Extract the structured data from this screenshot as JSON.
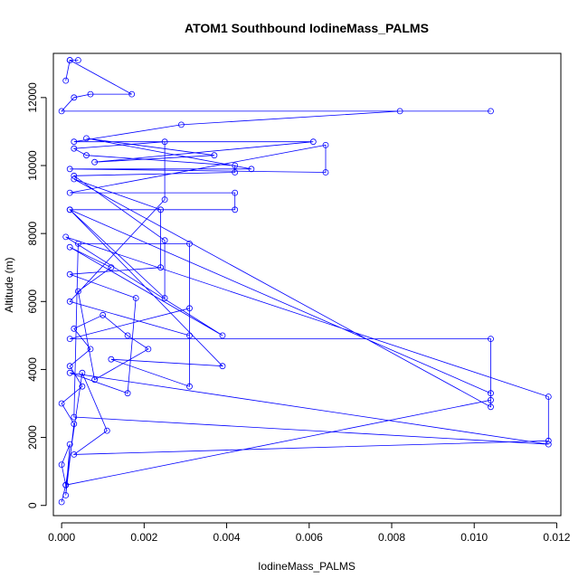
{
  "chart_data": {
    "type": "scatter",
    "title": "ATOM1 Southbound IodineMass_PALMS",
    "xlabel": "IodineMass_PALMS",
    "ylabel": "Altitude (m)",
    "xlim": [
      -0.0002,
      0.0121
    ],
    "ylim": [
      -300,
      13300
    ],
    "xticks": [
      0,
      0.002,
      0.004,
      0.006,
      0.008,
      0.01,
      0.012
    ],
    "xtick_labels": [
      "0.000",
      "0.002",
      "0.004",
      "0.006",
      "0.008",
      "0.010",
      "0.012"
    ],
    "yticks": [
      0,
      2000,
      4000,
      6000,
      8000,
      10000,
      12000
    ],
    "ytick_labels": [
      "0",
      "2000",
      "4000",
      "6000",
      "8000",
      "10000",
      "12000"
    ],
    "grid": false,
    "legend": "none",
    "plot_kind": "points connected by lines (type = b)",
    "color": "#0000ff",
    "series": [
      {
        "x": [
          0.0,
          0.0001,
          0.0,
          0.0002,
          0.0001,
          0.0003,
          0.0,
          0.0005,
          0.0002,
          0.0007,
          0.0003,
          0.001,
          0.0016,
          0.0021,
          0.0008,
          0.0004,
          0.0012,
          0.0002,
          0.0039,
          0.0001,
          0.0118,
          0.0118,
          0.0003,
          0.0011,
          0.0005,
          0.0001,
          0.0104,
          0.0104,
          0.0002,
          0.0031,
          0.0031,
          0.0012,
          0.0039,
          0.0002,
          0.0104,
          0.0104,
          0.0003,
          0.0024,
          0.0024,
          0.0002,
          0.0018,
          0.0016,
          0.0002,
          0.0118,
          0.0003,
          0.0004,
          0.0031,
          0.0031,
          0.0002,
          0.0025,
          0.0025,
          0.0003,
          0.0006,
          0.0042,
          0.0042,
          0.0003,
          0.0025,
          0.0025,
          0.0002,
          0.0042,
          0.0042,
          0.0002,
          0.0064,
          0.0064,
          0.0002,
          0.0046,
          0.0006,
          0.0037,
          0.0008,
          0.0061,
          0.0003,
          0.0029,
          0.0082,
          0.0104,
          0.0,
          0.0003,
          0.0007,
          0.0017,
          0.0002,
          0.0001,
          0.0002,
          0.0004
        ],
        "y": [
          100,
          600,
          1200,
          1800,
          300,
          2400,
          3000,
          3500,
          4100,
          4600,
          5200,
          5600,
          5000,
          4600,
          3700,
          6300,
          7000,
          7600,
          5000,
          7900,
          3200,
          1900,
          1500,
          2200,
          3900,
          600,
          3100,
          4900,
          4900,
          5800,
          3500,
          4300,
          4100,
          8700,
          3300,
          2900,
          9600,
          8700,
          7000,
          6800,
          6100,
          3300,
          3900,
          1800,
          2600,
          7700,
          7700,
          5000,
          6000,
          9000,
          10700,
          10500,
          10300,
          10000,
          9800,
          9700,
          7800,
          6100,
          8700,
          8700,
          9200,
          9200,
          10600,
          9800,
          9900,
          9900,
          10800,
          10300,
          10100,
          10700,
          10700,
          11200,
          11600,
          11600,
          11600,
          12000,
          12100,
          12100,
          13100,
          12500,
          13100,
          13100
        ]
      }
    ]
  }
}
